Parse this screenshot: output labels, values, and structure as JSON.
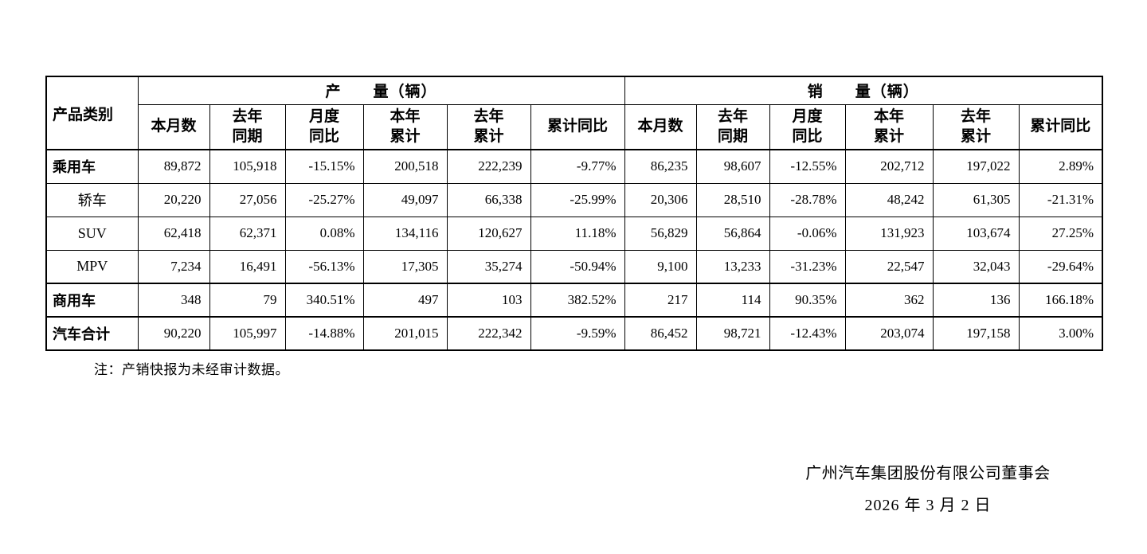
{
  "table": {
    "corner_header": "产品类别",
    "group_headers": [
      {
        "label": "产　　量（辆）"
      },
      {
        "label": "销　　量（辆）"
      }
    ],
    "sub_headers": [
      "本月数",
      "去年\n同期",
      "月度\n同比",
      "本年\n累计",
      "去年\n累计",
      "累计同比"
    ],
    "rows": [
      {
        "category": "乘用车",
        "bold": true,
        "align": "left",
        "heavy_top": true,
        "production": [
          "89,872",
          "105,918",
          "-15.15%",
          "200,518",
          "222,239",
          "-9.77%"
        ],
        "sales": [
          "86,235",
          "98,607",
          "-12.55%",
          "202,712",
          "197,022",
          "2.89%"
        ]
      },
      {
        "category": "轿车",
        "bold": false,
        "align": "center",
        "heavy_top": false,
        "production": [
          "20,220",
          "27,056",
          "-25.27%",
          "49,097",
          "66,338",
          "-25.99%"
        ],
        "sales": [
          "20,306",
          "28,510",
          "-28.78%",
          "48,242",
          "61,305",
          "-21.31%"
        ]
      },
      {
        "category": "SUV",
        "bold": false,
        "align": "center",
        "heavy_top": false,
        "production": [
          "62,418",
          "62,371",
          "0.08%",
          "134,116",
          "120,627",
          "11.18%"
        ],
        "sales": [
          "56,829",
          "56,864",
          "-0.06%",
          "131,923",
          "103,674",
          "27.25%"
        ]
      },
      {
        "category": "MPV",
        "bold": false,
        "align": "center",
        "heavy_top": false,
        "production": [
          "7,234",
          "16,491",
          "-56.13%",
          "17,305",
          "35,274",
          "-50.94%"
        ],
        "sales": [
          "9,100",
          "13,233",
          "-31.23%",
          "22,547",
          "32,043",
          "-29.64%"
        ]
      },
      {
        "category": "商用车",
        "bold": true,
        "align": "left",
        "heavy_top": true,
        "production": [
          "348",
          "79",
          "340.51%",
          "497",
          "103",
          "382.52%"
        ],
        "sales": [
          "217",
          "114",
          "90.35%",
          "362",
          "136",
          "166.18%"
        ]
      },
      {
        "category": "汽车合计",
        "bold": true,
        "align": "left",
        "heavy_top": true,
        "production": [
          "90,220",
          "105,997",
          "-14.88%",
          "201,015",
          "222,342",
          "-9.59%"
        ],
        "sales": [
          "86,452",
          "98,721",
          "-12.43%",
          "203,074",
          "197,158",
          "3.00%"
        ]
      }
    ],
    "note": "注：产销快报为未经审计数据。"
  },
  "footer": {
    "company": "广州汽车集团股份有限公司董事会",
    "date": "2026 年 3 月 2 日"
  }
}
